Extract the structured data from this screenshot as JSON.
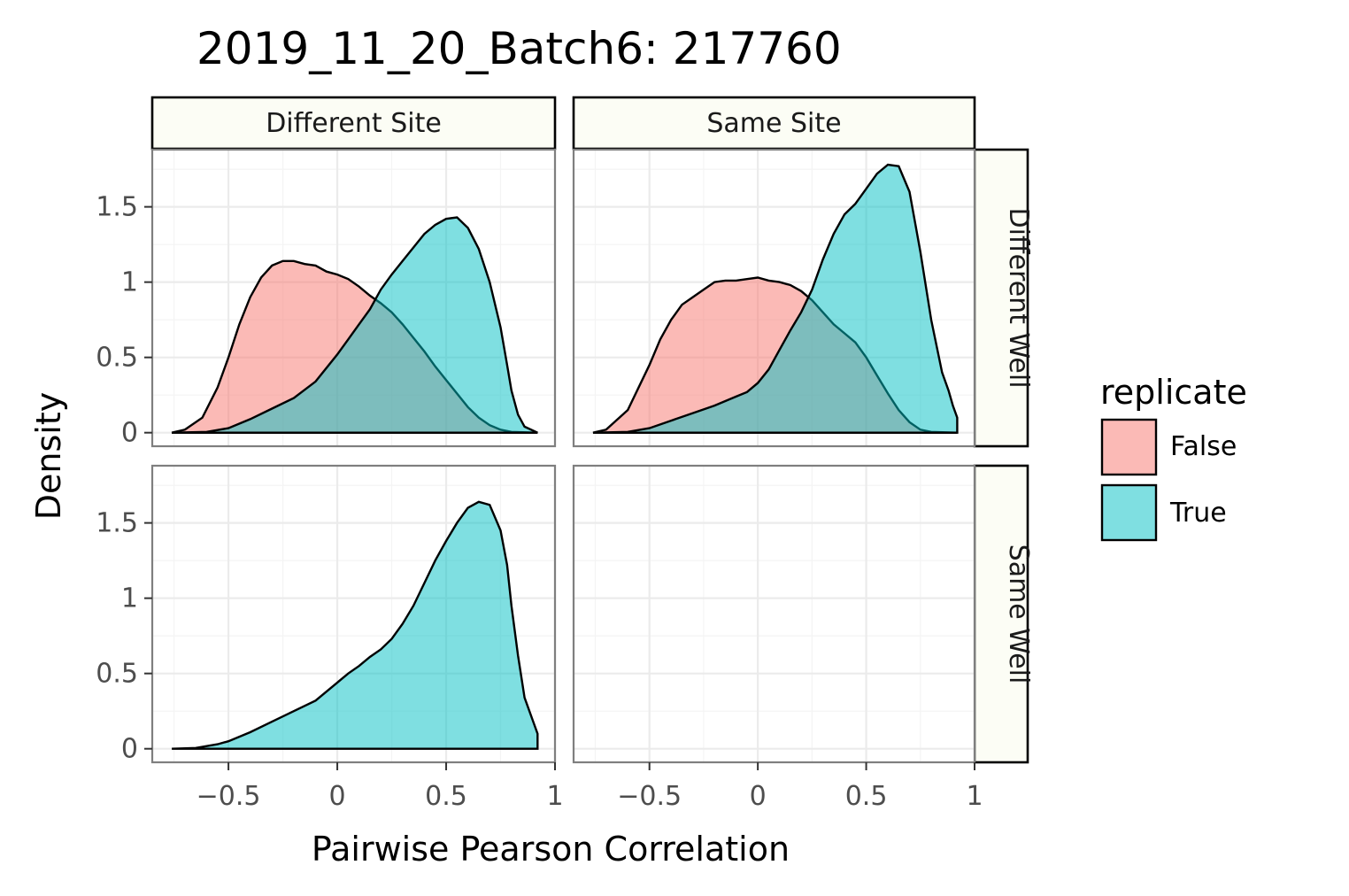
{
  "chart_data": {
    "type": "area",
    "title": "2019_11_20_Batch6: 217760",
    "xlabel": "Pairwise Pearson Correlation",
    "ylabel": "Density",
    "xlim": [
      -0.85,
      1.0
    ],
    "ylim": [
      -0.09,
      1.88
    ],
    "x_ticks": [
      -0.5,
      0,
      0.5,
      1
    ],
    "x_tick_labels": [
      "−0.5",
      "0",
      "0.5",
      "1"
    ],
    "y_ticks": [
      0,
      0.5,
      1,
      1.5
    ],
    "y_tick_labels": [
      "0",
      "0.5",
      "1",
      "1.5"
    ],
    "grid": true,
    "facet_cols": [
      "Different Site",
      "Same Site"
    ],
    "facet_rows": [
      "Different Well",
      "Same Well"
    ],
    "legend": {
      "title": "replicate",
      "placement": "right",
      "entries": [
        {
          "label": "False",
          "color": "#f8766d"
        },
        {
          "label": "True",
          "color": "#00bfc4"
        }
      ]
    },
    "panels": [
      {
        "col": "Different Site",
        "row": "Different Well",
        "series": [
          {
            "name": "False",
            "color": "#f8766d",
            "points": [
              [
                -0.76,
                0
              ],
              [
                -0.7,
                0.02
              ],
              [
                -0.62,
                0.1
              ],
              [
                -0.55,
                0.3
              ],
              [
                -0.5,
                0.5
              ],
              [
                -0.45,
                0.72
              ],
              [
                -0.4,
                0.9
              ],
              [
                -0.35,
                1.03
              ],
              [
                -0.3,
                1.11
              ],
              [
                -0.25,
                1.14
              ],
              [
                -0.2,
                1.14
              ],
              [
                -0.15,
                1.12
              ],
              [
                -0.1,
                1.11
              ],
              [
                -0.05,
                1.07
              ],
              [
                0,
                1.05
              ],
              [
                0.05,
                1.02
              ],
              [
                0.1,
                0.97
              ],
              [
                0.15,
                0.91
              ],
              [
                0.2,
                0.86
              ],
              [
                0.25,
                0.8
              ],
              [
                0.3,
                0.72
              ],
              [
                0.35,
                0.63
              ],
              [
                0.4,
                0.54
              ],
              [
                0.45,
                0.44
              ],
              [
                0.5,
                0.35
              ],
              [
                0.55,
                0.26
              ],
              [
                0.6,
                0.17
              ],
              [
                0.65,
                0.1
              ],
              [
                0.7,
                0.05
              ],
              [
                0.75,
                0.02
              ],
              [
                0.8,
                0.005
              ],
              [
                0.92,
                0
              ]
            ]
          },
          {
            "name": "True",
            "color": "#00bfc4",
            "points": [
              [
                -0.76,
                0
              ],
              [
                -0.6,
                0.005
              ],
              [
                -0.5,
                0.03
              ],
              [
                -0.4,
                0.09
              ],
              [
                -0.3,
                0.16
              ],
              [
                -0.2,
                0.23
              ],
              [
                -0.1,
                0.34
              ],
              [
                0,
                0.52
              ],
              [
                0.05,
                0.62
              ],
              [
                0.1,
                0.72
              ],
              [
                0.15,
                0.82
              ],
              [
                0.2,
                0.95
              ],
              [
                0.25,
                1.05
              ],
              [
                0.3,
                1.14
              ],
              [
                0.35,
                1.23
              ],
              [
                0.4,
                1.32
              ],
              [
                0.45,
                1.38
              ],
              [
                0.5,
                1.42
              ],
              [
                0.55,
                1.43
              ],
              [
                0.6,
                1.36
              ],
              [
                0.65,
                1.22
              ],
              [
                0.7,
                1.0
              ],
              [
                0.75,
                0.7
              ],
              [
                0.78,
                0.45
              ],
              [
                0.8,
                0.28
              ],
              [
                0.83,
                0.12
              ],
              [
                0.86,
                0.04
              ],
              [
                0.92,
                0
              ]
            ]
          }
        ]
      },
      {
        "col": "Same Site",
        "row": "Different Well",
        "series": [
          {
            "name": "False",
            "color": "#f8766d",
            "points": [
              [
                -0.76,
                0
              ],
              [
                -0.7,
                0.02
              ],
              [
                -0.6,
                0.15
              ],
              [
                -0.5,
                0.45
              ],
              [
                -0.45,
                0.62
              ],
              [
                -0.4,
                0.75
              ],
              [
                -0.35,
                0.85
              ],
              [
                -0.3,
                0.9
              ],
              [
                -0.25,
                0.95
              ],
              [
                -0.2,
                1.0
              ],
              [
                -0.15,
                1.01
              ],
              [
                -0.1,
                1.01
              ],
              [
                -0.05,
                1.02
              ],
              [
                0,
                1.03
              ],
              [
                0.05,
                1.01
              ],
              [
                0.1,
                1.0
              ],
              [
                0.15,
                0.98
              ],
              [
                0.2,
                0.94
              ],
              [
                0.25,
                0.88
              ],
              [
                0.3,
                0.8
              ],
              [
                0.35,
                0.72
              ],
              [
                0.4,
                0.66
              ],
              [
                0.45,
                0.6
              ],
              [
                0.5,
                0.5
              ],
              [
                0.55,
                0.38
              ],
              [
                0.6,
                0.26
              ],
              [
                0.65,
                0.15
              ],
              [
                0.7,
                0.07
              ],
              [
                0.75,
                0.02
              ],
              [
                0.8,
                0.005
              ],
              [
                0.92,
                0
              ]
            ]
          },
          {
            "name": "True",
            "color": "#00bfc4",
            "points": [
              [
                -0.76,
                0
              ],
              [
                -0.6,
                0.005
              ],
              [
                -0.5,
                0.03
              ],
              [
                -0.4,
                0.08
              ],
              [
                -0.3,
                0.13
              ],
              [
                -0.2,
                0.18
              ],
              [
                -0.1,
                0.24
              ],
              [
                -0.05,
                0.27
              ],
              [
                0,
                0.33
              ],
              [
                0.05,
                0.42
              ],
              [
                0.1,
                0.55
              ],
              [
                0.15,
                0.68
              ],
              [
                0.2,
                0.8
              ],
              [
                0.25,
                0.95
              ],
              [
                0.3,
                1.15
              ],
              [
                0.35,
                1.32
              ],
              [
                0.4,
                1.45
              ],
              [
                0.45,
                1.52
              ],
              [
                0.5,
                1.62
              ],
              [
                0.55,
                1.72
              ],
              [
                0.6,
                1.78
              ],
              [
                0.65,
                1.77
              ],
              [
                0.7,
                1.6
              ],
              [
                0.75,
                1.2
              ],
              [
                0.8,
                0.75
              ],
              [
                0.85,
                0.4
              ],
              [
                0.88,
                0.28
              ],
              [
                0.9,
                0.18
              ],
              [
                0.92,
                0.1
              ],
              [
                0.92,
                0
              ]
            ]
          }
        ]
      },
      {
        "col": "Different Site",
        "row": "Same Well",
        "series": [
          {
            "name": "True",
            "color": "#00bfc4",
            "points": [
              [
                -0.76,
                0
              ],
              [
                -0.65,
                0.005
              ],
              [
                -0.55,
                0.03
              ],
              [
                -0.5,
                0.05
              ],
              [
                -0.4,
                0.11
              ],
              [
                -0.3,
                0.18
              ],
              [
                -0.2,
                0.25
              ],
              [
                -0.1,
                0.32
              ],
              [
                0,
                0.44
              ],
              [
                0.05,
                0.5
              ],
              [
                0.1,
                0.55
              ],
              [
                0.15,
                0.61
              ],
              [
                0.2,
                0.66
              ],
              [
                0.25,
                0.73
              ],
              [
                0.3,
                0.83
              ],
              [
                0.35,
                0.95
              ],
              [
                0.4,
                1.1
              ],
              [
                0.45,
                1.25
              ],
              [
                0.5,
                1.38
              ],
              [
                0.55,
                1.5
              ],
              [
                0.6,
                1.6
              ],
              [
                0.65,
                1.64
              ],
              [
                0.7,
                1.62
              ],
              [
                0.75,
                1.45
              ],
              [
                0.78,
                1.22
              ],
              [
                0.8,
                0.95
              ],
              [
                0.83,
                0.62
              ],
              [
                0.86,
                0.34
              ],
              [
                0.9,
                0.18
              ],
              [
                0.92,
                0.1
              ],
              [
                0.92,
                0
              ]
            ]
          }
        ]
      },
      {
        "col": "Same Site",
        "row": "Same Well",
        "series": []
      }
    ]
  }
}
